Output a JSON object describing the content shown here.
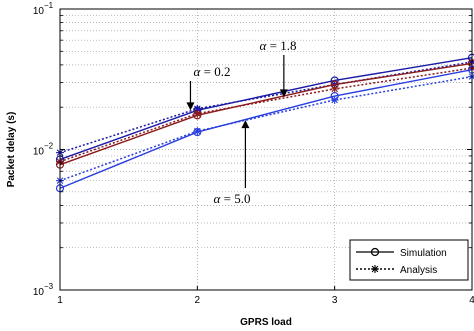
{
  "chart_data": {
    "type": "line",
    "title": "",
    "xlabel": "GPRS load",
    "ylabel": "Packet delay (s)",
    "xlim": [
      1,
      4
    ],
    "ylim": [
      0.001,
      0.1
    ],
    "y_scale": "log",
    "x_ticks": [
      "1",
      "2",
      "3",
      "4"
    ],
    "y_ticks": [
      {
        "base": "10",
        "exp": "−1",
        "value": 0.1
      },
      {
        "base": "10",
        "exp": "−2",
        "value": 0.01
      },
      {
        "base": "10",
        "exp": "−3",
        "value": 0.001
      }
    ],
    "grid": true,
    "legend": {
      "position": "bottom-right",
      "entries": [
        {
          "label": "Simulation",
          "style": "solid",
          "marker": "circle"
        },
        {
          "label": "Analysis",
          "style": "dotted",
          "marker": "asterisk"
        }
      ]
    },
    "x": [
      1,
      2,
      3,
      4
    ],
    "series": [
      {
        "group": "α = 0.2",
        "kind": "Simulation",
        "color": "#1a1aa6",
        "values": [
          0.0085,
          0.019,
          0.031,
          0.045
        ]
      },
      {
        "group": "α = 0.2",
        "kind": "Analysis",
        "color": "#1a1aa6",
        "values": [
          0.0095,
          0.0195,
          0.029,
          0.042
        ]
      },
      {
        "group": "α = 1.8",
        "kind": "Simulation",
        "color": "#8b1a1a",
        "values": [
          0.0078,
          0.0175,
          0.029,
          0.041
        ]
      },
      {
        "group": "α = 1.8",
        "kind": "Analysis",
        "color": "#8b1a1a",
        "values": [
          0.0082,
          0.018,
          0.027,
          0.038
        ]
      },
      {
        "group": "α = 5.0",
        "kind": "Simulation",
        "color": "#2a3fe0",
        "values": [
          0.0053,
          0.0133,
          0.024,
          0.037
        ]
      },
      {
        "group": "α = 5.0",
        "kind": "Analysis",
        "color": "#2a3fe0",
        "values": [
          0.006,
          0.0135,
          0.0225,
          0.033
        ]
      }
    ],
    "annotations": [
      {
        "alpha": "0.2",
        "points_to": {
          "x": 1.95,
          "y": 0.019
        }
      },
      {
        "alpha": "1.8",
        "points_to": {
          "x": 2.63,
          "y": 0.0235
        }
      },
      {
        "alpha": "5.0",
        "points_to": {
          "x": 2.35,
          "y": 0.0162
        }
      }
    ]
  }
}
